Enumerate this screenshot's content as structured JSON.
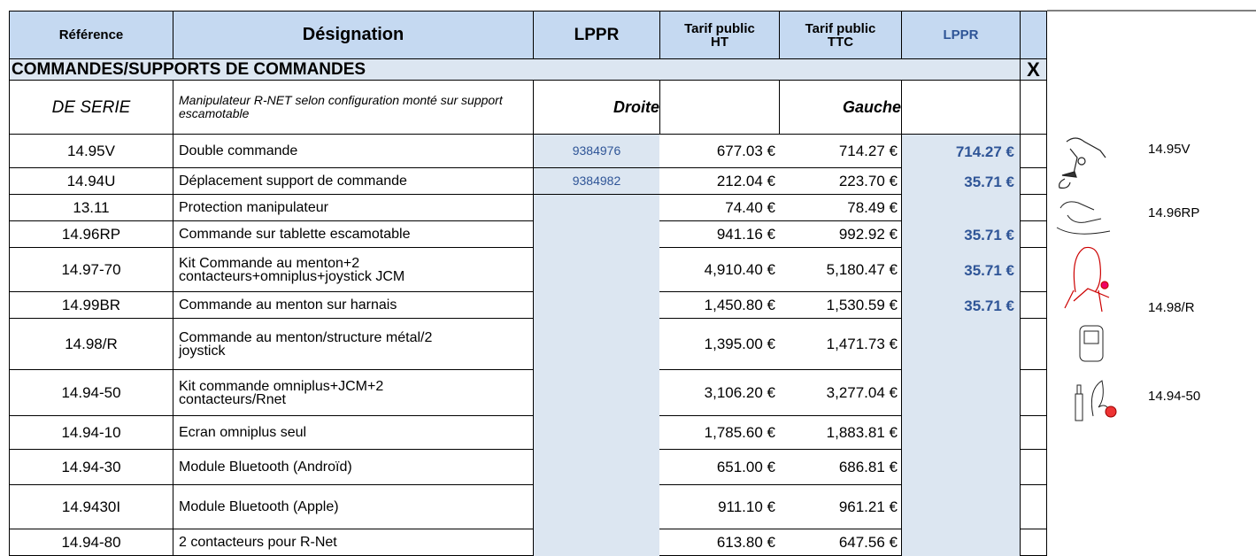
{
  "header": {
    "columns": [
      "Référence",
      "Désignation",
      "LPPR",
      "Tarif public HT",
      "Tarif public TTC",
      "LPPR"
    ]
  },
  "section": {
    "title": "COMMANDES/SUPPORTS DE COMMANDES",
    "mark": "X"
  },
  "series_row": {
    "reference": "DE SERIE",
    "designation": "Manipulateur R-NET selon configuration monté sur support escamotable",
    "left": "Droite",
    "right": "Gauche"
  },
  "rows": [
    {
      "reference": "14.95V",
      "designation": "Double commande",
      "code": "9384976",
      "ht": "677.03 €",
      "ttc": "714.27 €",
      "lppr": "714.27 €"
    },
    {
      "reference": "14.94U",
      "designation": "Déplacement support de commande",
      "code": "9384982",
      "ht": "212.04 €",
      "ttc": "223.70 €",
      "lppr": "35.71 €"
    },
    {
      "reference": "13.11",
      "designation": "Protection manipulateur",
      "ht": "74.40 €",
      "ttc": "78.49 €"
    },
    {
      "reference": "14.96RP",
      "designation": "Commande sur tablette escamotable",
      "ht": "941.16 €",
      "ttc": "992.92 €",
      "lppr": "35.71 €"
    },
    {
      "reference": "14.97-70",
      "designation": "Kit Commande au menton+2 contacteurs+omniplus+joystick JCM",
      "ht": "4,910.40 €",
      "ttc": "5,180.47 €",
      "lppr": "35.71 €"
    },
    {
      "reference": "14.99BR",
      "designation": "Commande au menton sur harnais",
      "ht": "1,450.80 €",
      "ttc": "1,530.59 €",
      "lppr": "35.71 €"
    },
    {
      "reference": "14.98/R",
      "designation": "Commande au menton/structure métal/2 joystick",
      "ht": "1,395.00 €",
      "ttc": "1,471.73 €"
    },
    {
      "reference": "14.94-50",
      "designation": "Kit commande omniplus+JCM+2 contacteurs/Rnet",
      "ht": "3,106.20 €",
      "ttc": "3,277.04 €"
    },
    {
      "reference": "14.94-10",
      "designation": "Ecran omniplus seul",
      "ht": "1,785.60 €",
      "ttc": "1,883.81 €"
    },
    {
      "reference": "14.94-30",
      "designation": "Module Bluetooth (Androïd)",
      "ht": "651.00 €",
      "ttc": "686.81 €"
    },
    {
      "reference": "14.9430I",
      "designation": "Module Bluetooth (Apple)",
      "ht": "911.10 €",
      "ttc": "961.21 €"
    },
    {
      "reference": "14.94-80",
      "designation": "2 contacteurs pour R-Net",
      "ht": "613.80 €",
      "ttc": "647.56 €"
    }
  ],
  "image_labels": [
    "14.95V",
    "14.96RP",
    "14.98/R",
    "14.94-50"
  ]
}
